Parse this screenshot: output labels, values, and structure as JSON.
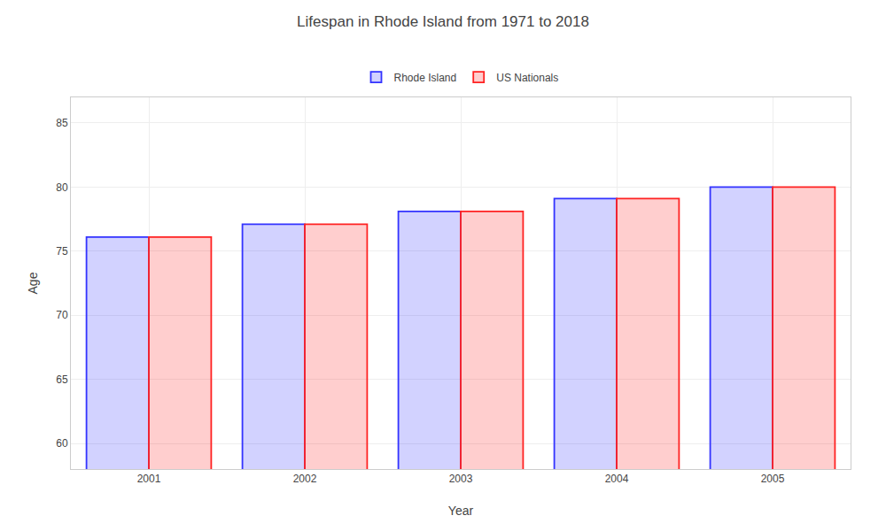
{
  "chart_data": {
    "type": "bar",
    "title": "Lifespan in Rhode Island from 1971 to 2018",
    "xlabel": "Year",
    "ylabel": "Age",
    "categories": [
      "2001",
      "2002",
      "2003",
      "2004",
      "2005"
    ],
    "series": [
      {
        "name": "Rhode Island",
        "color": "#3333ff",
        "values": [
          76.1,
          77.1,
          78.1,
          79.1,
          80.0
        ]
      },
      {
        "name": "US Nationals",
        "color": "#ff2222",
        "values": [
          76.1,
          77.1,
          78.1,
          79.1,
          80.0
        ]
      }
    ],
    "ylim": [
      58,
      87
    ],
    "yticks": [
      60,
      65,
      70,
      75,
      80,
      85
    ],
    "grid": true,
    "legend": "top"
  }
}
